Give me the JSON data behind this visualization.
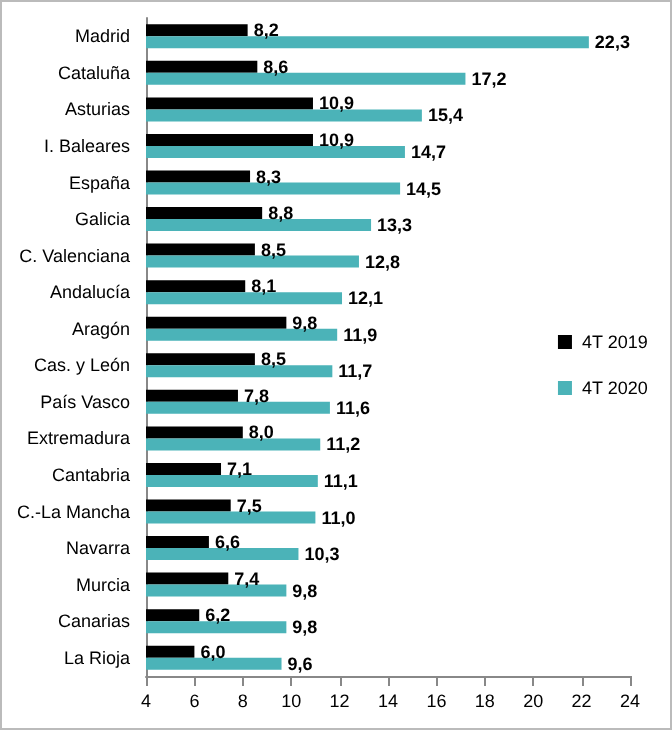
{
  "chart_data": {
    "type": "bar",
    "orientation": "horizontal",
    "categories": [
      "Madrid",
      "Cataluña",
      "Asturias",
      "I. Baleares",
      "España",
      "Galicia",
      "C. Valenciana",
      "Andalucía",
      "Aragón",
      "Cas. y León",
      "País Vasco",
      "Extremadura",
      "Cantabria",
      "C.-La Mancha",
      "Navarra",
      "Murcia",
      "Canarias",
      "La Rioja"
    ],
    "series": [
      {
        "name": "4T 2019",
        "color": "#000000",
        "values": [
          8.2,
          8.6,
          10.9,
          10.9,
          8.3,
          8.8,
          8.5,
          8.1,
          9.8,
          8.5,
          7.8,
          8.0,
          7.1,
          7.5,
          6.6,
          7.4,
          6.2,
          6.0
        ],
        "value_labels": [
          "8,2",
          "8,6",
          "10,9",
          "10,9",
          "8,3",
          "8,8",
          "8,5",
          "8,1",
          "9,8",
          "8,5",
          "7,8",
          "8,0",
          "7,1",
          "7,5",
          "6,6",
          "7,4",
          "6,2",
          "6,0"
        ]
      },
      {
        "name": "4T 2020",
        "color": "#4bb3b8",
        "values": [
          22.3,
          17.2,
          15.4,
          14.7,
          14.5,
          13.3,
          12.8,
          12.1,
          11.9,
          11.7,
          11.6,
          11.2,
          11.1,
          11.0,
          10.3,
          9.8,
          9.8,
          9.6
        ],
        "value_labels": [
          "22,3",
          "17,2",
          "15,4",
          "14,7",
          "14,5",
          "13,3",
          "12,8",
          "12,1",
          "11,9",
          "11,7",
          "11,6",
          "11,2",
          "11,1",
          "11,0",
          "10,3",
          "9,8",
          "9,8",
          "9,6"
        ]
      }
    ],
    "xlim": [
      4,
      24
    ],
    "xticks": [
      4,
      6,
      8,
      10,
      12,
      14,
      16,
      18,
      20,
      22,
      24
    ],
    "legend": "right",
    "grid": false
  }
}
